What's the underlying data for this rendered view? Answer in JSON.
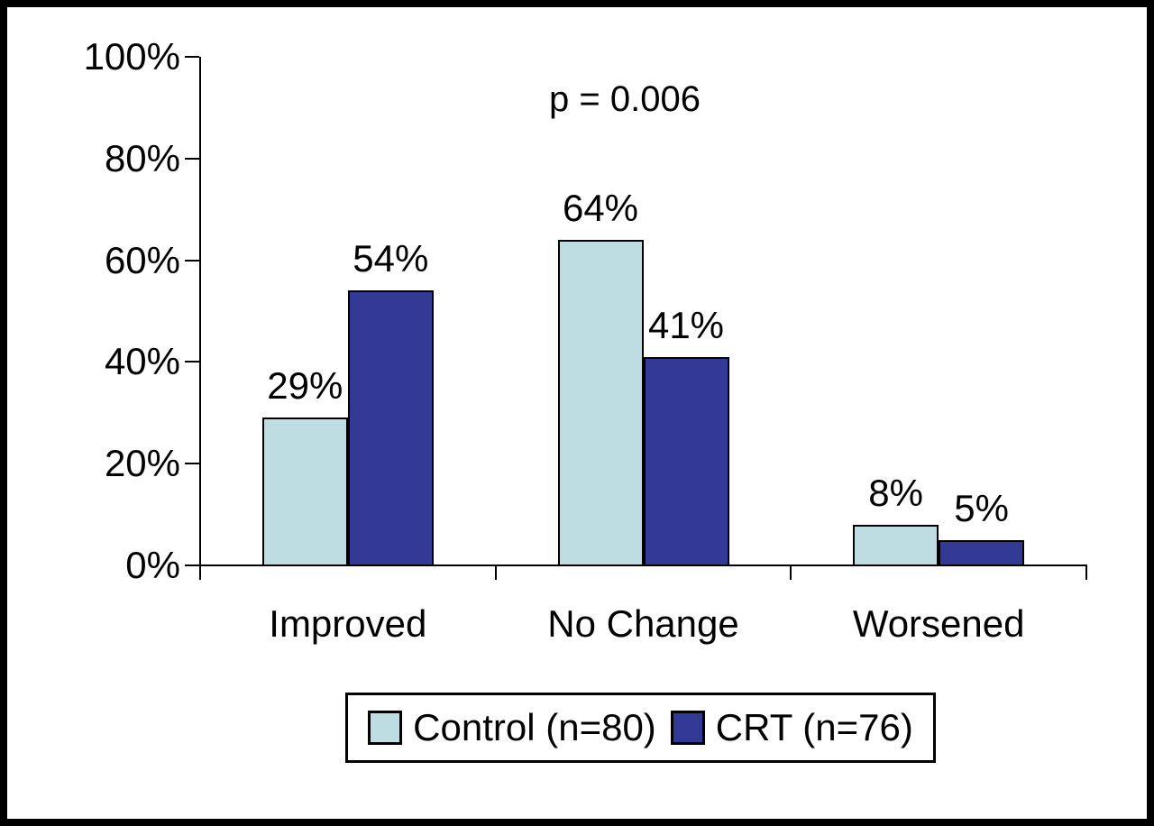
{
  "colors": {
    "control_fill": "#bedde2",
    "crt_fill": "#333a96",
    "axis": "#000000",
    "background": "#ffffff",
    "frame_border": "#000000"
  },
  "chart_data": {
    "type": "bar",
    "title": "",
    "categories": [
      "Improved",
      "No Change",
      "Worsened"
    ],
    "series": [
      {
        "name": "Control (n=80)",
        "color": "#bedde2",
        "values": [
          29,
          64,
          8
        ]
      },
      {
        "name": "CRT (n=76)",
        "color": "#333a96",
        "values": [
          54,
          41,
          5
        ]
      }
    ],
    "value_label_format": "percent",
    "value_labels": [
      [
        "29%",
        "64%",
        "8%"
      ],
      [
        "54%",
        "41%",
        "5%"
      ]
    ],
    "annotation": {
      "text": "p = 0.006"
    },
    "y_axis": {
      "min": 0,
      "max": 100,
      "step": 20,
      "ticks": [
        "0%",
        "20%",
        "40%",
        "60%",
        "80%",
        "100%"
      ]
    },
    "x_axis": {
      "label": ""
    },
    "legend": {
      "position": "bottom",
      "entries": [
        "Control (n=80)",
        "CRT (n=76)"
      ]
    },
    "grid": false
  }
}
